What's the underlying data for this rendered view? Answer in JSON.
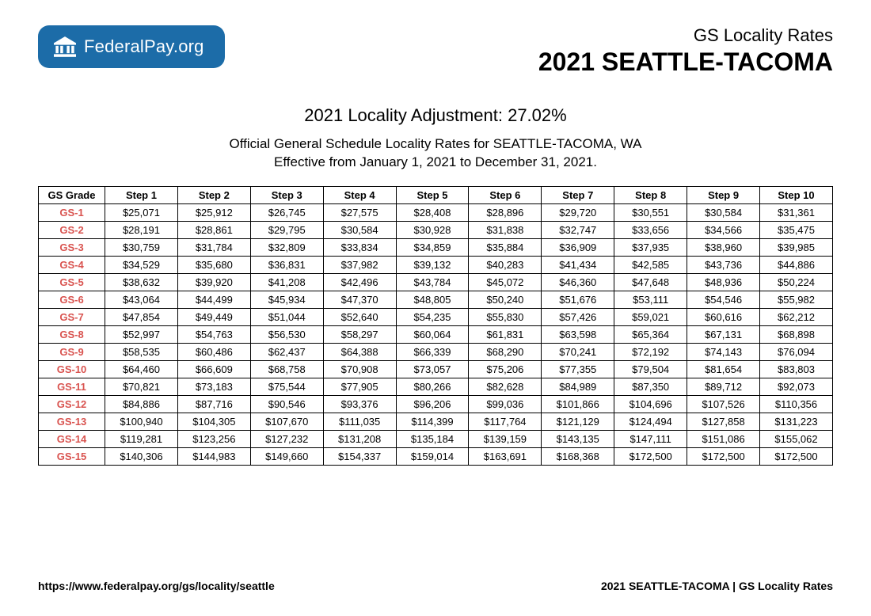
{
  "logo": {
    "text_bold": "Federal",
    "text_light": "Pay.org",
    "badge_color": "#1c6ca8"
  },
  "header": {
    "small": "GS Locality Rates",
    "big": "2021 SEATTLE-TACOMA"
  },
  "subtitle": {
    "adjustment": "2021 Locality Adjustment: 27.02%",
    "desc1": "Official General Schedule Locality Rates for SEATTLE-TACOMA, WA",
    "desc2": "Effective from January 1, 2021 to December 31, 2021."
  },
  "table": {
    "columns": [
      "GS Grade",
      "Step 1",
      "Step 2",
      "Step 3",
      "Step 4",
      "Step 5",
      "Step 6",
      "Step 7",
      "Step 8",
      "Step 9",
      "Step 10"
    ],
    "rows": [
      {
        "grade": "GS-1",
        "cells": [
          "$25,071",
          "$25,912",
          "$26,745",
          "$27,575",
          "$28,408",
          "$28,896",
          "$29,720",
          "$30,551",
          "$30,584",
          "$31,361"
        ]
      },
      {
        "grade": "GS-2",
        "cells": [
          "$28,191",
          "$28,861",
          "$29,795",
          "$30,584",
          "$30,928",
          "$31,838",
          "$32,747",
          "$33,656",
          "$34,566",
          "$35,475"
        ]
      },
      {
        "grade": "GS-3",
        "cells": [
          "$30,759",
          "$31,784",
          "$32,809",
          "$33,834",
          "$34,859",
          "$35,884",
          "$36,909",
          "$37,935",
          "$38,960",
          "$39,985"
        ]
      },
      {
        "grade": "GS-4",
        "cells": [
          "$34,529",
          "$35,680",
          "$36,831",
          "$37,982",
          "$39,132",
          "$40,283",
          "$41,434",
          "$42,585",
          "$43,736",
          "$44,886"
        ]
      },
      {
        "grade": "GS-5",
        "cells": [
          "$38,632",
          "$39,920",
          "$41,208",
          "$42,496",
          "$43,784",
          "$45,072",
          "$46,360",
          "$47,648",
          "$48,936",
          "$50,224"
        ]
      },
      {
        "grade": "GS-6",
        "cells": [
          "$43,064",
          "$44,499",
          "$45,934",
          "$47,370",
          "$48,805",
          "$50,240",
          "$51,676",
          "$53,111",
          "$54,546",
          "$55,982"
        ]
      },
      {
        "grade": "GS-7",
        "cells": [
          "$47,854",
          "$49,449",
          "$51,044",
          "$52,640",
          "$54,235",
          "$55,830",
          "$57,426",
          "$59,021",
          "$60,616",
          "$62,212"
        ]
      },
      {
        "grade": "GS-8",
        "cells": [
          "$52,997",
          "$54,763",
          "$56,530",
          "$58,297",
          "$60,064",
          "$61,831",
          "$63,598",
          "$65,364",
          "$67,131",
          "$68,898"
        ]
      },
      {
        "grade": "GS-9",
        "cells": [
          "$58,535",
          "$60,486",
          "$62,437",
          "$64,388",
          "$66,339",
          "$68,290",
          "$70,241",
          "$72,192",
          "$74,143",
          "$76,094"
        ]
      },
      {
        "grade": "GS-10",
        "cells": [
          "$64,460",
          "$66,609",
          "$68,758",
          "$70,908",
          "$73,057",
          "$75,206",
          "$77,355",
          "$79,504",
          "$81,654",
          "$83,803"
        ]
      },
      {
        "grade": "GS-11",
        "cells": [
          "$70,821",
          "$73,183",
          "$75,544",
          "$77,905",
          "$80,266",
          "$82,628",
          "$84,989",
          "$87,350",
          "$89,712",
          "$92,073"
        ]
      },
      {
        "grade": "GS-12",
        "cells": [
          "$84,886",
          "$87,716",
          "$90,546",
          "$93,376",
          "$96,206",
          "$99,036",
          "$101,866",
          "$104,696",
          "$107,526",
          "$110,356"
        ]
      },
      {
        "grade": "GS-13",
        "cells": [
          "$100,940",
          "$104,305",
          "$107,670",
          "$111,035",
          "$114,399",
          "$117,764",
          "$121,129",
          "$124,494",
          "$127,858",
          "$131,223"
        ]
      },
      {
        "grade": "GS-14",
        "cells": [
          "$119,281",
          "$123,256",
          "$127,232",
          "$131,208",
          "$135,184",
          "$139,159",
          "$143,135",
          "$147,111",
          "$151,086",
          "$155,062"
        ]
      },
      {
        "grade": "GS-15",
        "cells": [
          "$140,306",
          "$144,983",
          "$149,660",
          "$154,337",
          "$159,014",
          "$163,691",
          "$168,368",
          "$172,500",
          "$172,500",
          "$172,500"
        ]
      }
    ],
    "grade_link_color": "#d9534f"
  },
  "footer": {
    "left": "https://www.federalpay.org/gs/locality/seattle",
    "right": "2021 SEATTLE-TACOMA | GS Locality Rates"
  }
}
